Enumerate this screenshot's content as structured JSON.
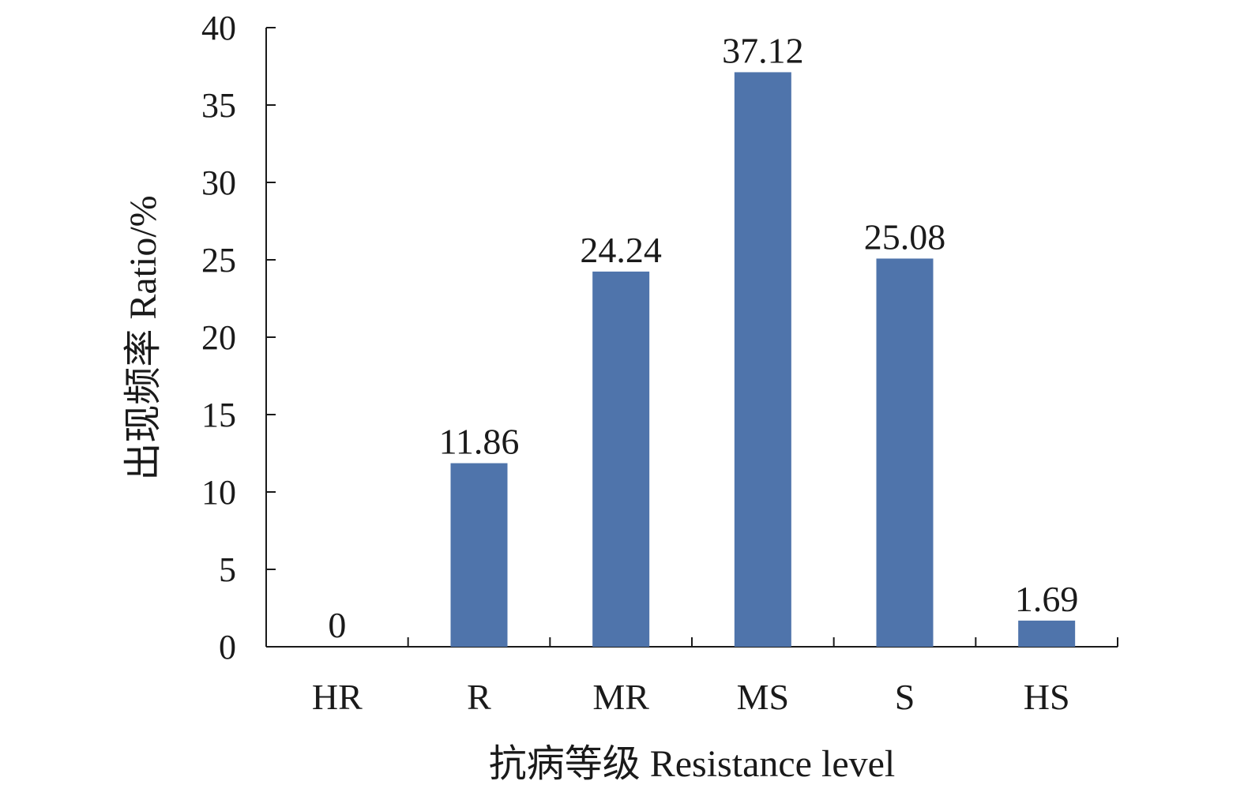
{
  "chart_data": {
    "type": "bar",
    "categories": [
      "HR",
      "R",
      "MR",
      "MS",
      "S",
      "HS"
    ],
    "values": [
      0,
      11.86,
      24.24,
      37.12,
      25.08,
      1.69
    ],
    "value_labels": [
      "0",
      "11.86",
      "24.24",
      "37.12",
      "25.08",
      "1.69"
    ],
    "xlabel": "抗病等级 Resistance level",
    "ylabel": "出现频率 Ratio/%",
    "ylim": [
      0,
      40
    ],
    "yticks": [
      0,
      5,
      10,
      15,
      20,
      25,
      30,
      35,
      40
    ],
    "grid": false,
    "bar_color": "#4f74ab"
  }
}
